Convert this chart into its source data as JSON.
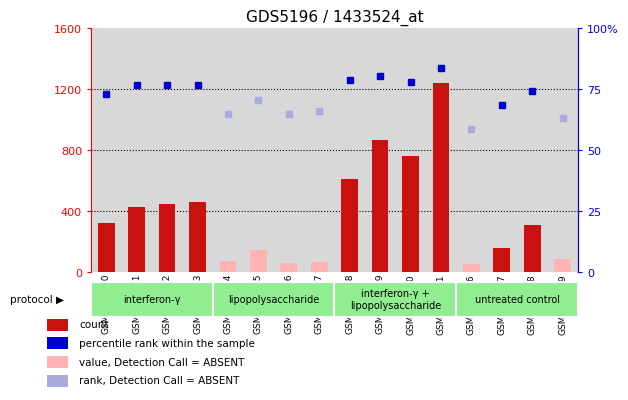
{
  "title": "GDS5196 / 1433524_at",
  "samples": [
    "GSM1304840",
    "GSM1304841",
    "GSM1304842",
    "GSM1304843",
    "GSM1304844",
    "GSM1304845",
    "GSM1304846",
    "GSM1304847",
    "GSM1304848",
    "GSM1304849",
    "GSM1304850",
    "GSM1304851",
    "GSM1304836",
    "GSM1304837",
    "GSM1304838",
    "GSM1304839"
  ],
  "bar_values": [
    320,
    430,
    445,
    460,
    70,
    145,
    60,
    65,
    610,
    870,
    760,
    1240,
    50,
    155,
    310,
    85
  ],
  "bar_absent": [
    false,
    false,
    false,
    false,
    true,
    true,
    true,
    true,
    false,
    false,
    false,
    false,
    true,
    false,
    false,
    true
  ],
  "rank_values": [
    1170,
    1230,
    1230,
    1230,
    null,
    null,
    null,
    null,
    1260,
    1290,
    1250,
    1340,
    null,
    1100,
    1190,
    null
  ],
  "rank_absent_vals": [
    null,
    null,
    null,
    null,
    1040,
    1130,
    1040,
    1060,
    null,
    null,
    null,
    null,
    940,
    null,
    null,
    1010
  ],
  "ylim_left": [
    0,
    1600
  ],
  "ylim_right": [
    0,
    100
  ],
  "yticks_left": [
    0,
    400,
    800,
    1200,
    1600
  ],
  "yticks_right": [
    0,
    25,
    50,
    75,
    100
  ],
  "groups": [
    {
      "label": "interferon-γ",
      "start": 0,
      "end": 4
    },
    {
      "label": "lipopolysaccharide",
      "start": 4,
      "end": 8
    },
    {
      "label": "interferon-γ +\nlipopolysaccharide",
      "start": 8,
      "end": 12
    },
    {
      "label": "untreated control",
      "start": 12,
      "end": 16
    }
  ],
  "bar_color_present": "#cc1111",
  "bar_color_absent": "#ffb3b3",
  "rank_color_present": "#0000cc",
  "rank_color_absent": "#aaaadd",
  "bg_color": "#d8d8d8",
  "title_fontsize": 11,
  "legend_items": [
    {
      "label": "count",
      "color": "#cc1111"
    },
    {
      "label": "percentile rank within the sample",
      "color": "#0000cc"
    },
    {
      "label": "value, Detection Call = ABSENT",
      "color": "#ffb3b3"
    },
    {
      "label": "rank, Detection Call = ABSENT",
      "color": "#aaaadd"
    }
  ]
}
